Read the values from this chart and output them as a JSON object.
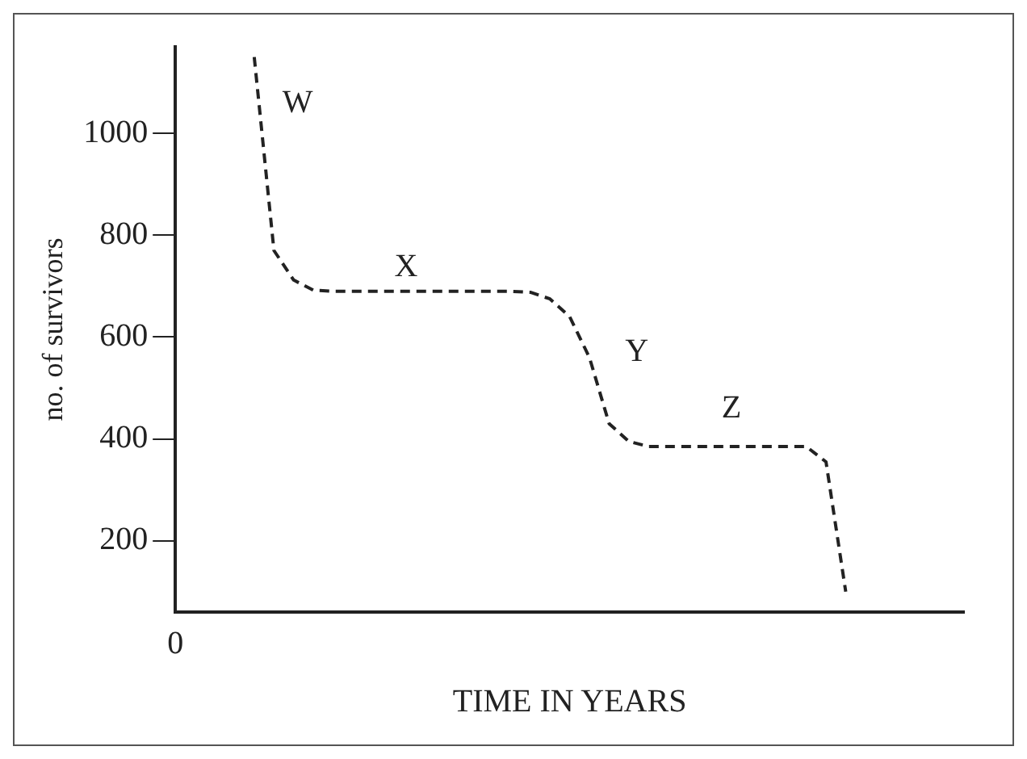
{
  "chart_data": {
    "type": "line",
    "xlabel": "TIME IN YEARS",
    "ylabel": "no. of survivors",
    "categories": [
      "0",
      null,
      null,
      null,
      null,
      null,
      null,
      null,
      null,
      null,
      null,
      null,
      null,
      null,
      null,
      null,
      null,
      null,
      null,
      null,
      null,
      null,
      null,
      null,
      null,
      null,
      null,
      null,
      null,
      null,
      null,
      null,
      null,
      null,
      null,
      null,
      null,
      null,
      null,
      null,
      null
    ],
    "series": [
      {
        "color": "#222222",
        "values": [
          null,
          null,
          null,
          null,
          1150,
          770,
          712,
          692,
          690,
          690,
          690,
          690,
          690,
          690,
          690,
          690,
          690,
          690,
          688,
          675,
          640,
          560,
          430,
          395,
          385,
          385,
          385,
          385,
          385,
          385,
          385,
          385,
          385,
          355,
          100,
          null,
          null,
          null,
          null,
          null,
          null
        ]
      }
    ],
    "ylim": [
      60,
      1170
    ],
    "yticks": [
      200,
      400,
      600,
      800,
      1000
    ],
    "annotations": [
      "W",
      "X",
      "Y",
      "Z"
    ],
    "grid": false,
    "legend": false,
    "marker": "none",
    "line_style": "dashed"
  }
}
